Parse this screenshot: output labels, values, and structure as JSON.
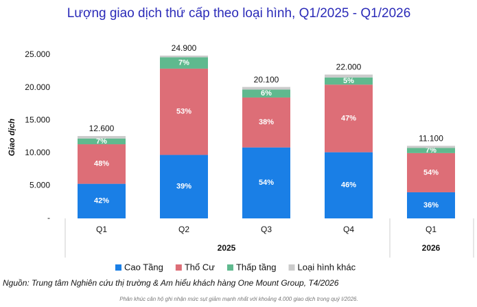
{
  "chart_data": {
    "type": "stacked_bar",
    "title": "Lượng giao dịch thứ cấp theo loại hình, Q1/2025 - Q1/2026",
    "y_label": "Giao dịch",
    "categories": [
      "Q1",
      "Q2",
      "Q3",
      "Q4",
      "Q1"
    ],
    "groups": [
      "2025",
      "2026"
    ],
    "series": [
      {
        "name": "Cao Tầng",
        "color": "#1a7fe6",
        "values": [
          5292,
          9711,
          10854,
          10120,
          3996
        ],
        "value_labels": [
          "42%",
          "39%",
          "54%",
          "46%",
          "36%"
        ]
      },
      {
        "name": "Thổ Cư",
        "color": "#dd6e77",
        "values": [
          6048,
          13197,
          7638,
          10340,
          5994
        ],
        "value_labels": [
          "48%",
          "53%",
          "38%",
          "47%",
          "54%"
        ]
      },
      {
        "name": "Thấp tầng",
        "color": "#5fb98e",
        "values": [
          882,
          1743,
          1206,
          1100,
          777
        ],
        "value_labels": [
          "7%",
          "7%",
          "6%",
          "5%",
          "7%"
        ]
      },
      {
        "name": "Loại hình khác",
        "color": "#cbcbcb",
        "values": [
          378,
          249,
          402,
          440,
          333
        ]
      }
    ],
    "totals": {
      "values": [
        12600,
        24900,
        20100,
        22000,
        11100
      ],
      "value_labels": [
        "12.600",
        "24.900",
        "20.100",
        "22.000",
        "11.100"
      ]
    },
    "ylim": [
      0,
      25000
    ],
    "yticks": [
      {
        "value": 0,
        "label": "-"
      },
      {
        "value": 5000,
        "label": "5.000"
      },
      {
        "value": 10000,
        "label": "10.000"
      },
      {
        "value": 15000,
        "label": "15.000"
      },
      {
        "value": 20000,
        "label": "20.000"
      },
      {
        "value": 25000,
        "label": "25.000"
      }
    ],
    "source": "Nguồn: Trung tâm Nghiên cứu thị trường & Am hiểu khách hàng One Mount Group, T4/2026",
    "footnote": "Phân khúc căn hộ ghi nhận mức sụt giảm mạnh nhất với khoảng 4.000 giao dịch trong quý I/2026."
  }
}
